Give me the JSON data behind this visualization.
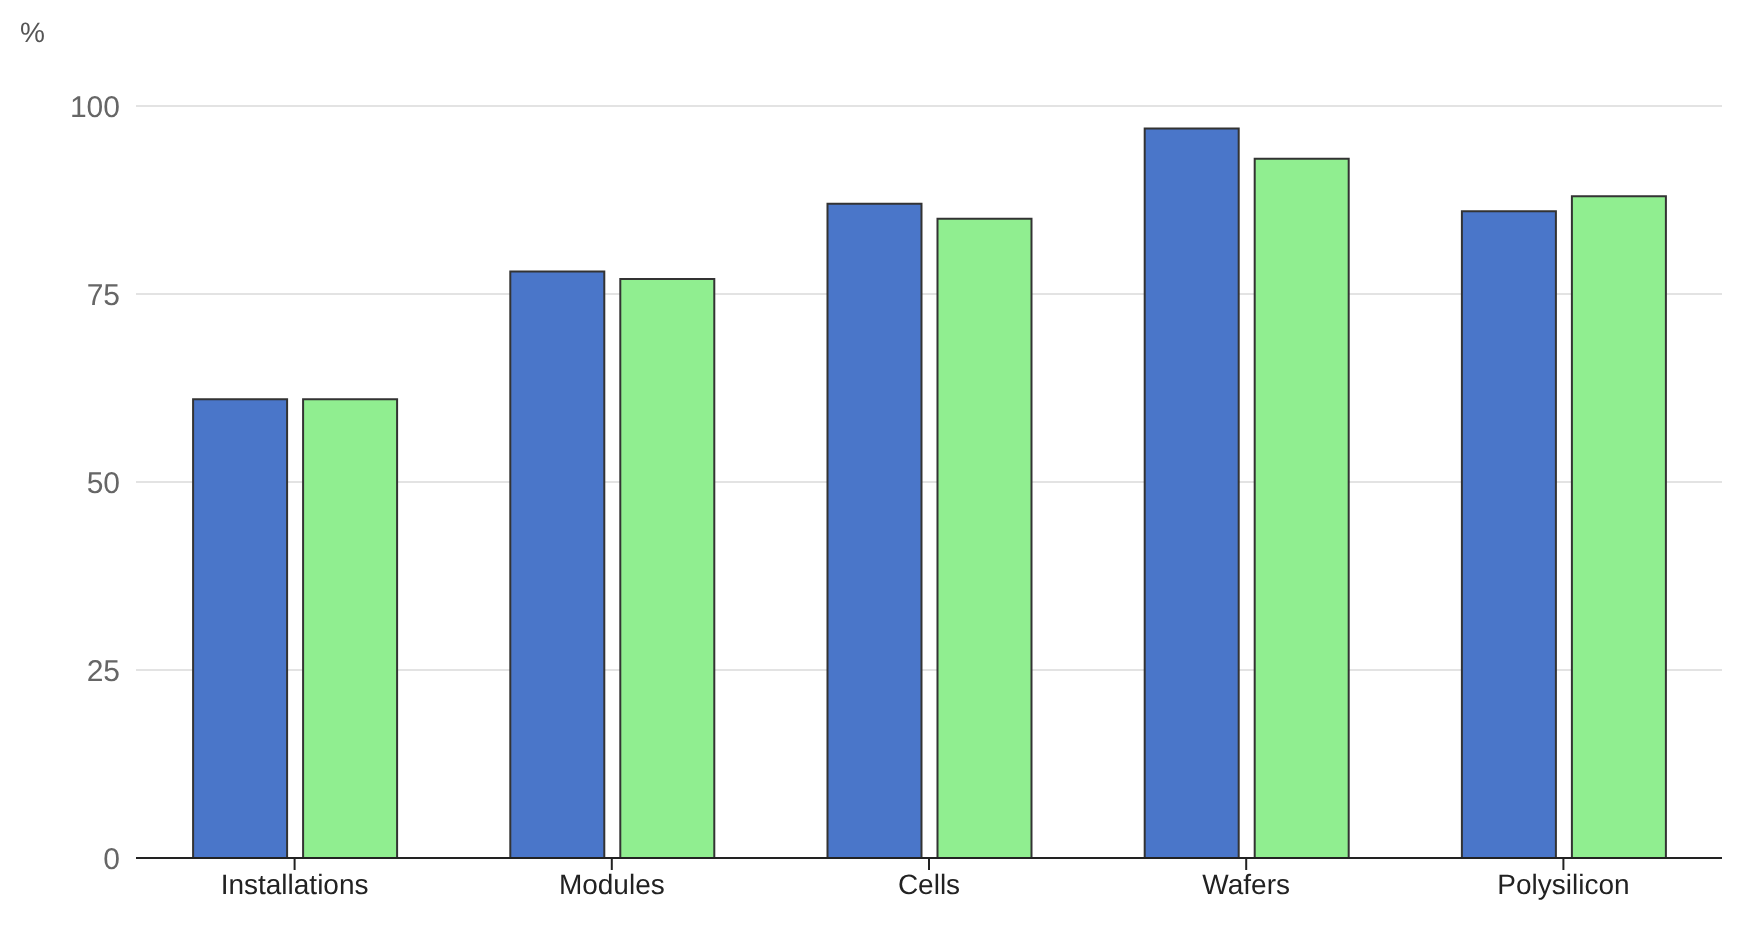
{
  "chart_data": {
    "type": "bar",
    "ylabel": "%",
    "categories": [
      "Installations",
      "Modules",
      "Cells",
      "Wafers",
      "Polysilicon"
    ],
    "series": [
      {
        "color": "#4a76c9",
        "values": [
          61,
          78,
          87,
          97,
          86
        ]
      },
      {
        "color": "#90ee90",
        "values": [
          61,
          77,
          85,
          93,
          88
        ]
      }
    ],
    "ylim": [
      0,
      100
    ],
    "yticks": [
      0,
      25,
      50,
      75,
      100
    ],
    "grid": "y",
    "legend": false
  }
}
